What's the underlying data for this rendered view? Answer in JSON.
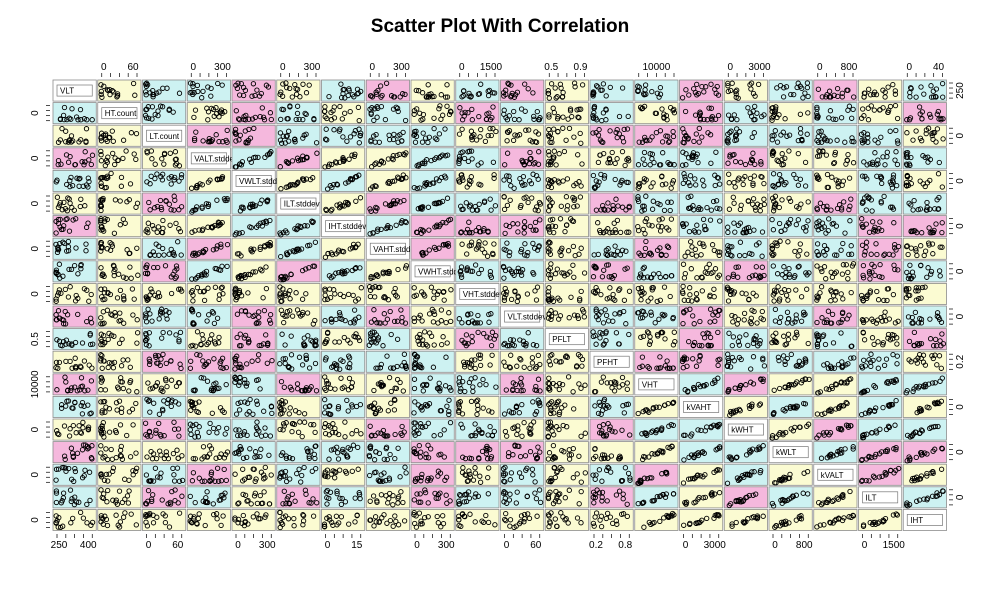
{
  "chart_data": {
    "type": "scatter",
    "title": "Scatter Plot With Correlation",
    "variables": [
      "VLT",
      "HT.count",
      "LT.count",
      "VALT.stddev",
      "VWLT.stddev",
      "ILT.stddev",
      "IHT.stddev",
      "VAHT.stddev",
      "VWHT.stddev",
      "VHT.stddev",
      "VLT.stddev",
      "PFLT",
      "PFHT",
      "VHT",
      "kVAHT",
      "kWHT",
      "kWLT",
      "kVALT",
      "ILT",
      "IHT"
    ],
    "diagonal_labels": [
      "VLT",
      "HT.count",
      "LT.count",
      "VALT.stddev",
      "VWLT.stddev",
      "ILT.stddev",
      "IHT.stddev",
      "VAHT.stdde",
      "VWHT.stdde",
      "VHT.stddev",
      "VLT.stddev",
      "PFLT",
      "PFHT",
      "VHT",
      "kVAHT",
      "kWHT",
      "kWLT",
      "kVALT",
      "ILT",
      "IHT"
    ],
    "top_axis_ticks": [
      {
        "column": 1,
        "labels": [
          "0",
          "60"
        ]
      },
      {
        "column": 3,
        "labels": [
          "0",
          "300"
        ]
      },
      {
        "column": 5,
        "labels": [
          "0",
          "300"
        ]
      },
      {
        "column": 7,
        "labels": [
          "0",
          "300"
        ]
      },
      {
        "column": 9,
        "labels": [
          "0",
          "1500"
        ]
      },
      {
        "column": 11,
        "labels": [
          "0.5",
          "0.9"
        ]
      },
      {
        "column": 13,
        "labels": [
          "10000"
        ]
      },
      {
        "column": 15,
        "labels": [
          "0",
          "3000"
        ]
      },
      {
        "column": 17,
        "labels": [
          "0",
          "800"
        ]
      },
      {
        "column": 19,
        "labels": [
          "0",
          "40"
        ]
      }
    ],
    "bottom_axis_ticks": [
      {
        "column": 0,
        "labels": [
          "250",
          "400"
        ]
      },
      {
        "column": 2,
        "labels": [
          "0",
          "60"
        ]
      },
      {
        "column": 4,
        "labels": [
          "0",
          "300"
        ]
      },
      {
        "column": 6,
        "labels": [
          "0",
          "15"
        ]
      },
      {
        "column": 8,
        "labels": [
          "0",
          "300"
        ]
      },
      {
        "column": 10,
        "labels": [
          "0",
          "60"
        ]
      },
      {
        "column": 12,
        "labels": [
          "0.2",
          "0.8"
        ]
      },
      {
        "column": 14,
        "labels": [
          "0",
          "3000"
        ]
      },
      {
        "column": 16,
        "labels": [
          "0",
          "800"
        ]
      },
      {
        "column": 18,
        "labels": [
          "0",
          "1500"
        ]
      }
    ],
    "left_axis_ticks": [
      {
        "row": 1,
        "labels": [
          "0"
        ]
      },
      {
        "row": 3,
        "labels": [
          "0"
        ]
      },
      {
        "row": 5,
        "labels": [
          "0"
        ]
      },
      {
        "row": 7,
        "labels": [
          "0"
        ]
      },
      {
        "row": 9,
        "labels": [
          "0"
        ]
      },
      {
        "row": 11,
        "labels": [
          "0.5"
        ]
      },
      {
        "row": 13,
        "labels": [
          "10000"
        ]
      },
      {
        "row": 15,
        "labels": [
          "0"
        ]
      },
      {
        "row": 17,
        "labels": [
          "0"
        ]
      },
      {
        "row": 19,
        "labels": [
          "0"
        ]
      }
    ],
    "right_axis_ticks": [
      {
        "row": 0,
        "labels": [
          "250"
        ]
      },
      {
        "row": 2,
        "labels": [
          "0"
        ]
      },
      {
        "row": 4,
        "labels": [
          "0"
        ]
      },
      {
        "row": 6,
        "labels": [
          "0"
        ]
      },
      {
        "row": 8,
        "labels": [
          "0"
        ]
      },
      {
        "row": 10,
        "labels": [
          "0"
        ]
      },
      {
        "row": 12,
        "labels": [
          "0.2"
        ]
      },
      {
        "row": 14,
        "labels": [
          "0"
        ]
      },
      {
        "row": 16,
        "labels": [
          "0"
        ]
      },
      {
        "row": 18,
        "labels": [
          "0"
        ]
      }
    ],
    "panel_fill_colors": {
      "low": "#f5b8dd",
      "mid": "#fbfbd2",
      "high": "#cdf2f2"
    },
    "point_color": "#000000",
    "grid": false,
    "legend": "none"
  }
}
